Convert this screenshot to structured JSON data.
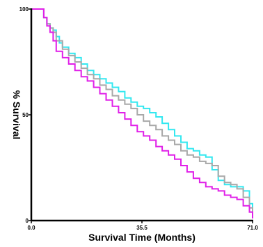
{
  "chart_data": {
    "type": "line",
    "xlabel": "Survival Time (Months)",
    "ylabel": "% Survival",
    "xlim": [
      0,
      71
    ],
    "ylim": [
      0,
      100
    ],
    "x_ticks": [
      {
        "value": 0,
        "label": "0.0"
      },
      {
        "value": 35.5,
        "label": "35.5"
      },
      {
        "value": 71,
        "label": "71.0"
      }
    ],
    "y_ticks": [
      {
        "value": 0,
        "label": "0"
      },
      {
        "value": 50,
        "label": "50"
      },
      {
        "value": 100,
        "label": "100"
      }
    ],
    "grid": false,
    "step": true,
    "series": [
      {
        "color": "#33e8f0",
        "x": [
          0,
          2,
          4,
          5,
          6,
          7,
          8,
          9,
          10,
          12,
          14,
          16,
          18,
          20,
          22,
          24,
          26,
          28,
          30,
          32,
          34,
          36,
          38,
          40,
          42,
          44,
          46,
          48,
          50,
          52,
          54,
          56,
          58,
          60,
          62,
          64,
          66,
          68,
          70,
          71
        ],
        "y": [
          100,
          100,
          96,
          93,
          91,
          90,
          87,
          84,
          82,
          79,
          77,
          74,
          71,
          69,
          67,
          65,
          63,
          61,
          58,
          56,
          54,
          53,
          51,
          49,
          46,
          43,
          40,
          37,
          34,
          33,
          31,
          30,
          24,
          19,
          17,
          16,
          16,
          14,
          8,
          1
        ]
      },
      {
        "color": "#a8a8a8",
        "x": [
          0,
          2,
          4,
          5,
          6,
          7,
          8,
          10,
          12,
          14,
          16,
          18,
          20,
          22,
          24,
          26,
          28,
          30,
          32,
          34,
          36,
          38,
          40,
          42,
          44,
          46,
          48,
          50,
          52,
          54,
          56,
          58,
          60,
          62,
          64,
          66,
          68,
          70,
          71
        ],
        "y": [
          100,
          100,
          96,
          93,
          91,
          89,
          85,
          81,
          78,
          75,
          72,
          69,
          67,
          64,
          62,
          59,
          57,
          55,
          53,
          50,
          47,
          45,
          43,
          40,
          38,
          36,
          33,
          31,
          30,
          28,
          27,
          26,
          21,
          18,
          17,
          15,
          11,
          6,
          1
        ]
      },
      {
        "color": "#e020e8",
        "x": [
          0,
          2,
          4,
          5,
          6,
          7,
          8,
          10,
          12,
          14,
          16,
          18,
          20,
          22,
          24,
          26,
          28,
          30,
          32,
          34,
          36,
          38,
          40,
          42,
          44,
          46,
          48,
          50,
          52,
          54,
          56,
          58,
          60,
          62,
          64,
          66,
          68,
          70,
          71
        ],
        "y": [
          100,
          100,
          96,
          92,
          89,
          85,
          80,
          77,
          74,
          71,
          68,
          66,
          63,
          60,
          57,
          54,
          51,
          48,
          45,
          42,
          40,
          38,
          35,
          33,
          31,
          29,
          26,
          23,
          20,
          18,
          16,
          15,
          14,
          12,
          11,
          10,
          7,
          4,
          1
        ]
      }
    ]
  }
}
